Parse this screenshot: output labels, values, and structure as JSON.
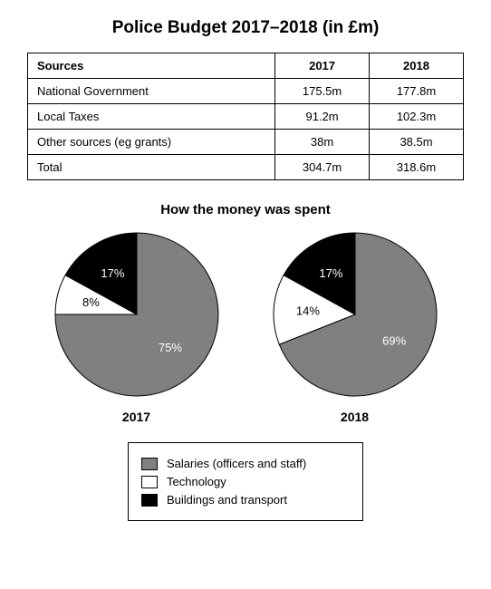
{
  "title": "Police Budget 2017–2018 (in £m)",
  "table": {
    "columns": [
      "Sources",
      "2017",
      "2018"
    ],
    "rows": [
      [
        "National Government",
        "175.5m",
        "177.8m"
      ],
      [
        "Local Taxes",
        "91.2m",
        "102.3m"
      ],
      [
        "Other sources (eg grants)",
        "38m",
        "38.5m"
      ],
      [
        "Total",
        "304.7m",
        "318.6m"
      ]
    ],
    "border_color": "#000000",
    "header_fontweight": "bold",
    "fontsize": 13
  },
  "spending": {
    "subtitle": "How the money was spent",
    "pies": [
      {
        "year": "2017",
        "slices": [
          {
            "label": "75%",
            "value": 75,
            "fill": "#808080",
            "label_color": "light"
          },
          {
            "label": "8%",
            "value": 8,
            "fill": "#ffffff",
            "label_color": "dark"
          },
          {
            "label": "17%",
            "value": 17,
            "fill": "#000000",
            "label_color": "light"
          }
        ]
      },
      {
        "year": "2018",
        "slices": [
          {
            "label": "69%",
            "value": 69,
            "fill": "#808080",
            "label_color": "light"
          },
          {
            "label": "14%",
            "value": 14,
            "fill": "#ffffff",
            "label_color": "dark"
          },
          {
            "label": "17%",
            "value": 17,
            "fill": "#000000",
            "label_color": "light"
          }
        ]
      }
    ],
    "pie_radius": 90,
    "start_angle_deg": -90,
    "stroke": "#000000",
    "stroke_width": 1
  },
  "legend": {
    "items": [
      {
        "swatch": "#808080",
        "label": "Salaries (officers and staff)"
      },
      {
        "swatch": "#ffffff",
        "label": "Technology"
      },
      {
        "swatch": "#000000",
        "label": "Buildings and transport"
      }
    ],
    "border_color": "#000000",
    "fontsize": 13
  },
  "colors": {
    "background": "#ffffff",
    "text": "#000000"
  }
}
